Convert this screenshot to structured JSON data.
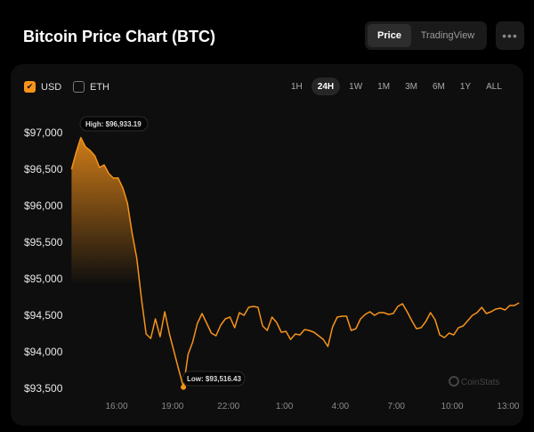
{
  "header": {
    "title": "Bitcoin Price Chart (BTC)",
    "view_tabs": [
      "Price",
      "TradingView"
    ],
    "active_view": "Price",
    "more_label": "•••"
  },
  "currencies": [
    {
      "label": "USD",
      "checked": true
    },
    {
      "label": "ETH",
      "checked": false
    }
  ],
  "ranges": [
    "1H",
    "24H",
    "1W",
    "1M",
    "3M",
    "6M",
    "1Y",
    "ALL"
  ],
  "active_range": "24H",
  "watermark": "CoinStats",
  "colors": {
    "line": "#f7931a",
    "background": "#0e0e0e"
  },
  "chart_data": {
    "type": "line",
    "ylim": [
      93500,
      97000
    ],
    "y_ticks": [
      "$93,500",
      "$94,000",
      "$94,500",
      "$95,000",
      "$95,500",
      "$96,000",
      "$96,500",
      "$97,000"
    ],
    "x_ticks": [
      "16:00",
      "19:00",
      "22:00",
      "1:00",
      "4:00",
      "7:00",
      "10:00",
      "13:00"
    ],
    "start_time": "13:35",
    "interval_minutes": 15,
    "values": [
      96500,
      96732,
      96933,
      96805,
      96756,
      96683,
      96524,
      96560,
      96440,
      96378,
      96380,
      96244,
      96037,
      95622,
      95280,
      94732,
      94244,
      94183,
      94451,
      94207,
      94549,
      94244,
      94000,
      93756,
      93516,
      93963,
      94134,
      94390,
      94524,
      94390,
      94256,
      94220,
      94366,
      94451,
      94476,
      94330,
      94537,
      94500,
      94610,
      94622,
      94610,
      94354,
      94293,
      94476,
      94403,
      94268,
      94280,
      94170,
      94244,
      94232,
      94305,
      94293,
      94268,
      94220,
      94171,
      94073,
      94341,
      94476,
      94488,
      94488,
      94293,
      94317,
      94451,
      94512,
      94549,
      94500,
      94537,
      94537,
      94512,
      94524,
      94622,
      94659,
      94549,
      94427,
      94317,
      94330,
      94415,
      94537,
      94439,
      94232,
      94195,
      94256,
      94232,
      94330,
      94354,
      94427,
      94500,
      94537,
      94610,
      94524,
      94549,
      94585,
      94598,
      94573,
      94634,
      94634,
      94671
    ],
    "annotations": {
      "high": "High: $96,933.19",
      "low": "Low: $93,516.43"
    },
    "grid": false,
    "legend": "none"
  }
}
